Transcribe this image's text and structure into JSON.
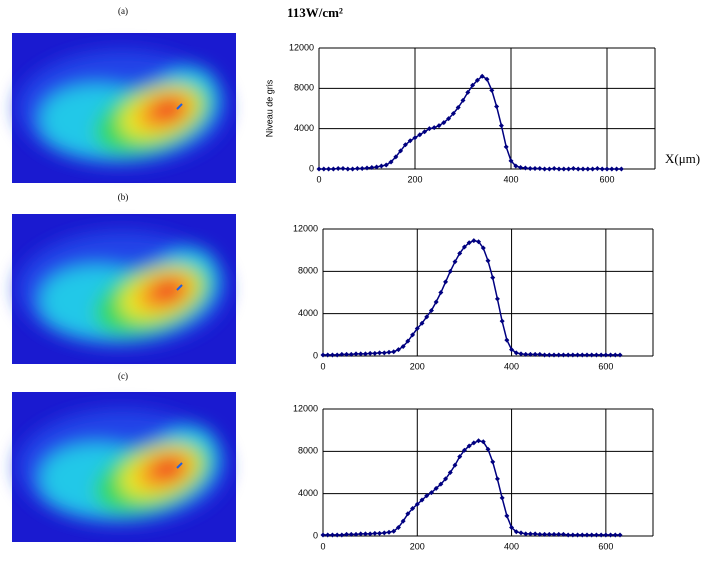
{
  "title": "113W/cm²",
  "chart_data": [
    {
      "type": "line",
      "panel": "(a)",
      "y_label": "Niveau de gris",
      "x_label": "X(μm)",
      "xlim": [
        0,
        700
      ],
      "xticks": [
        0,
        200,
        400,
        600
      ],
      "ylim": [
        0,
        12000
      ],
      "yticks": [
        0,
        4000,
        8000,
        12000
      ],
      "grid": true,
      "color": "#000080",
      "x": [
        0,
        10,
        20,
        30,
        40,
        50,
        60,
        70,
        80,
        90,
        100,
        110,
        120,
        130,
        140,
        150,
        160,
        170,
        180,
        190,
        200,
        210,
        220,
        230,
        240,
        250,
        260,
        270,
        280,
        290,
        300,
        310,
        320,
        330,
        340,
        350,
        360,
        370,
        380,
        390,
        400,
        410,
        420,
        430,
        440,
        450,
        460,
        470,
        480,
        490,
        500,
        510,
        520,
        530,
        540,
        550,
        560,
        570,
        580,
        590,
        600,
        610,
        620,
        630
      ],
      "values": [
        0,
        0,
        0,
        0,
        50,
        50,
        0,
        0,
        50,
        50,
        100,
        150,
        200,
        300,
        400,
        700,
        1200,
        1800,
        2400,
        2800,
        3100,
        3400,
        3700,
        4000,
        4100,
        4300,
        4600,
        5000,
        5500,
        6100,
        6800,
        7600,
        8300,
        8800,
        9200,
        8900,
        7800,
        6200,
        4300,
        2200,
        800,
        300,
        150,
        100,
        50,
        50,
        50,
        0,
        0,
        50,
        0,
        0,
        0,
        50,
        0,
        0,
        0,
        0,
        50,
        0,
        0,
        0,
        0,
        0
      ]
    },
    {
      "type": "line",
      "panel": "(b)",
      "xlim": [
        0,
        700
      ],
      "xticks": [
        0,
        200,
        400,
        600
      ],
      "ylim": [
        0,
        12000
      ],
      "yticks": [
        0,
        4000,
        8000,
        12000
      ],
      "grid": true,
      "color": "#000080",
      "x": [
        0,
        10,
        20,
        30,
        40,
        50,
        60,
        70,
        80,
        90,
        100,
        110,
        120,
        130,
        140,
        150,
        160,
        170,
        180,
        190,
        200,
        210,
        220,
        230,
        240,
        250,
        260,
        270,
        280,
        290,
        300,
        310,
        320,
        330,
        340,
        350,
        360,
        370,
        380,
        390,
        400,
        410,
        420,
        430,
        440,
        450,
        460,
        470,
        480,
        490,
        500,
        510,
        520,
        530,
        540,
        550,
        560,
        570,
        580,
        590,
        600,
        610,
        620,
        630
      ],
      "values": [
        100,
        100,
        100,
        100,
        150,
        150,
        150,
        200,
        200,
        200,
        250,
        250,
        300,
        300,
        350,
        400,
        600,
        900,
        1400,
        2000,
        2600,
        3100,
        3700,
        4300,
        5100,
        6000,
        7000,
        8000,
        8900,
        9700,
        10300,
        10700,
        10900,
        10800,
        10200,
        9000,
        7400,
        5400,
        3300,
        1500,
        600,
        300,
        200,
        150,
        150,
        150,
        150,
        100,
        100,
        100,
        100,
        100,
        100,
        100,
        100,
        100,
        100,
        100,
        100,
        100,
        100,
        100,
        100,
        100
      ]
    },
    {
      "type": "line",
      "panel": "(c)",
      "xlim": [
        0,
        700
      ],
      "xticks": [
        0,
        200,
        400,
        600
      ],
      "ylim": [
        0,
        12000
      ],
      "yticks": [
        0,
        4000,
        8000,
        12000
      ],
      "grid": true,
      "color": "#000080",
      "x": [
        0,
        10,
        20,
        30,
        40,
        50,
        60,
        70,
        80,
        90,
        100,
        110,
        120,
        130,
        140,
        150,
        160,
        170,
        180,
        190,
        200,
        210,
        220,
        230,
        240,
        250,
        260,
        270,
        280,
        290,
        300,
        310,
        320,
        330,
        340,
        350,
        360,
        370,
        380,
        390,
        400,
        410,
        420,
        430,
        440,
        450,
        460,
        470,
        480,
        490,
        500,
        510,
        520,
        530,
        540,
        550,
        560,
        570,
        580,
        590,
        600,
        610,
        620,
        630
      ],
      "values": [
        100,
        100,
        100,
        100,
        100,
        150,
        150,
        150,
        200,
        200,
        200,
        250,
        250,
        300,
        350,
        450,
        800,
        1400,
        2100,
        2600,
        3000,
        3400,
        3800,
        4100,
        4500,
        4900,
        5400,
        6000,
        6700,
        7500,
        8100,
        8500,
        8800,
        9000,
        8900,
        8200,
        7000,
        5400,
        3600,
        1900,
        800,
        400,
        300,
        200,
        200,
        200,
        150,
        150,
        150,
        150,
        150,
        150,
        100,
        100,
        100,
        100,
        100,
        100,
        100,
        100,
        100,
        100,
        100,
        100
      ]
    }
  ]
}
